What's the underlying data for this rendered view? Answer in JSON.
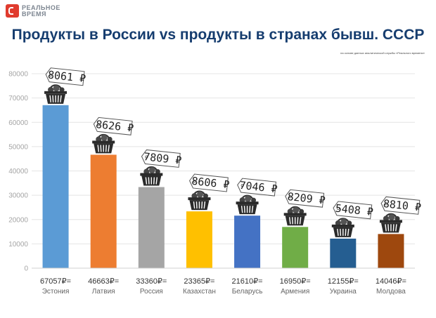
{
  "header": {
    "logo_text": "РЕАЛЬНОЕ ВРЕМЯ",
    "title": "Продукты в России vs продукты в странах бывш. СССР",
    "source": "на основе данных аналитической службы «Реального времени»"
  },
  "colors": {
    "title": "#163d6f",
    "logo": "#e03b2e",
    "grid": "#e4e4e4",
    "axis_text": "#a5a5a5"
  },
  "icons": {
    "basket": "basket-icon",
    "price_tag": "price-tag-icon"
  },
  "chart_data": {
    "type": "bar",
    "categories": [
      "Эстония",
      "Латвия",
      "Россия",
      "Казахстан",
      "Беларусь",
      "Армения",
      "Украина",
      "Молдова"
    ],
    "values": [
      67057,
      46663,
      33360,
      23365,
      21610,
      16950,
      12155,
      14046
    ],
    "value_labels": [
      "67057₽=",
      "46663₽=",
      "33360₽=",
      "23365₽=",
      "21610₽=",
      "16950₽=",
      "12155₽=",
      "14046₽="
    ],
    "basket_prices": [
      8061,
      8626,
      7809,
      8606,
      7046,
      8209,
      5408,
      8810
    ],
    "basket_labels": [
      "8061 ₽",
      "8626 ₽",
      "7809 ₽",
      "8606 ₽",
      "7046 ₽",
      "8209 ₽",
      "5408 ₽",
      "8810 ₽"
    ],
    "colors": [
      "#5b9bd5",
      "#ed7d31",
      "#a5a5a5",
      "#ffc000",
      "#4472c4",
      "#70ad47",
      "#255e91",
      "#9e480e"
    ],
    "yticks": [
      0,
      10000,
      20000,
      30000,
      40000,
      50000,
      60000,
      70000,
      80000
    ],
    "ylim": [
      0,
      80000
    ],
    "grid": true
  }
}
